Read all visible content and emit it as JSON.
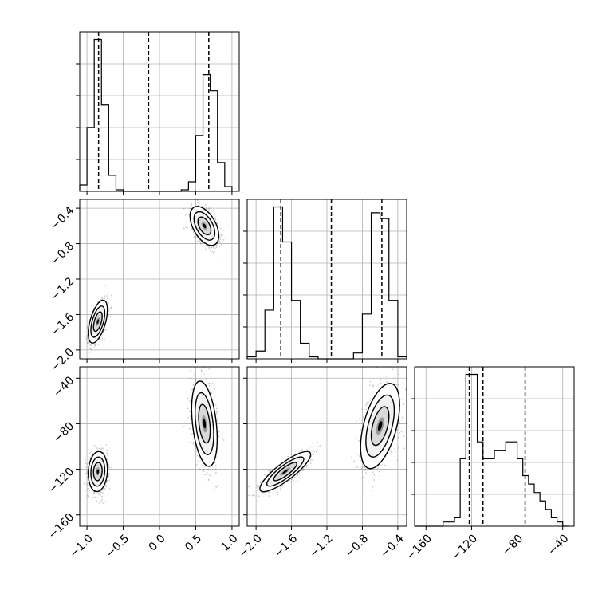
{
  "chart_data": {
    "type": "corner",
    "grid": true,
    "parameters": [
      {
        "name": "",
        "range": [
          -1.1,
          1.1
        ],
        "ticks": [
          -1.0,
          -0.5,
          0.0,
          0.5,
          1.0
        ],
        "tick_labels": [
          "−1.0",
          "−0.5",
          "0.0",
          "0.5",
          "1.0"
        ]
      },
      {
        "name": "",
        "range": [
          -2.1,
          -0.3
        ],
        "ticks": [
          -2.0,
          -1.6,
          -1.2,
          -0.8,
          -0.4
        ],
        "tick_labels": [
          "−2.0",
          "−1.6",
          "−1.2",
          "−0.8",
          "−0.4"
        ]
      },
      {
        "name": "",
        "range": [
          -170,
          -30
        ],
        "ticks": [
          -160,
          -120,
          -80,
          -40
        ],
        "tick_labels": [
          "−160",
          "−120",
          "−80",
          "−40"
        ]
      }
    ],
    "histograms": [
      {
        "parameter": 0,
        "bin_edges": [
          -1.1,
          -1.0,
          -0.9,
          -0.8,
          -0.7,
          -0.6,
          -0.5,
          -0.4,
          -0.3,
          -0.2,
          -0.1,
          0.0,
          0.1,
          0.2,
          0.3,
          0.4,
          0.5,
          0.6,
          0.7,
          0.8,
          0.9,
          1.0
        ],
        "counts": [
          4,
          40,
          95,
          54,
          10,
          1,
          0,
          0,
          0,
          0,
          0,
          0,
          0,
          0,
          1,
          6,
          35,
          73,
          63,
          18,
          3
        ],
        "quantile_lines": [
          -0.84,
          -0.15,
          0.68
        ]
      },
      {
        "parameter": 1,
        "bin_edges": [
          -2.1,
          -2.0,
          -1.9,
          -1.8,
          -1.7,
          -1.6,
          -1.5,
          -1.4,
          -1.3,
          -1.2,
          -1.1,
          -1.0,
          -0.9,
          -0.8,
          -0.7,
          -0.6,
          -0.5,
          -0.4,
          -0.3
        ],
        "counts": [
          1,
          4,
          25,
          78,
          60,
          30,
          8,
          1,
          0,
          0,
          0,
          0,
          3,
          23,
          75,
          72,
          30,
          1
        ],
        "quantile_lines": [
          -1.72,
          -1.15,
          -0.58
        ]
      },
      {
        "parameter": 2,
        "bin_edges": [
          -170,
          -165,
          -160,
          -155,
          -150,
          -145,
          -140,
          -135,
          -130,
          -125,
          -120,
          -115,
          -110,
          -105,
          -100,
          -95,
          -90,
          -85,
          -80,
          -75,
          -70,
          -65,
          -60,
          -55,
          -50,
          -45,
          -40,
          -35
        ],
        "counts": [
          0,
          0,
          0,
          0,
          0,
          1,
          1,
          2,
          16,
          36,
          36,
          20,
          16,
          16,
          18,
          18,
          20,
          20,
          16,
          12,
          10,
          8,
          6,
          4,
          2,
          1,
          0
        ],
        "quantile_lines": [
          -122,
          -110,
          -73
        ]
      }
    ],
    "scatter_panels": [
      {
        "x": 0,
        "y": 1,
        "clusters": [
          {
            "center": [
              -0.85,
              -1.68
            ],
            "sd": [
              0.06,
              0.11
            ],
            "rho": 0.55,
            "weight": 0.5
          },
          {
            "center": [
              0.62,
              -0.6
            ],
            "sd": [
              0.09,
              0.1
            ],
            "rho": -0.5,
            "weight": 0.5
          }
        ]
      },
      {
        "x": 0,
        "y": 2,
        "clusters": [
          {
            "center": [
              -0.85,
              -122
            ],
            "sd": [
              0.06,
              8
            ],
            "rho": 0.1,
            "weight": 0.5
          },
          {
            "center": [
              0.62,
              -80
            ],
            "sd": [
              0.08,
              17
            ],
            "rho": -0.35,
            "weight": 0.5
          }
        ]
      },
      {
        "x": 1,
        "y": 2,
        "clusters": [
          {
            "center": [
              -1.67,
              -122
            ],
            "sd": [
              0.13,
              8
            ],
            "rho": 0.85,
            "weight": 0.5
          },
          {
            "center": [
              -0.6,
              -82
            ],
            "sd": [
              0.1,
              17
            ],
            "rho": 0.5,
            "weight": 0.5
          }
        ]
      }
    ]
  }
}
